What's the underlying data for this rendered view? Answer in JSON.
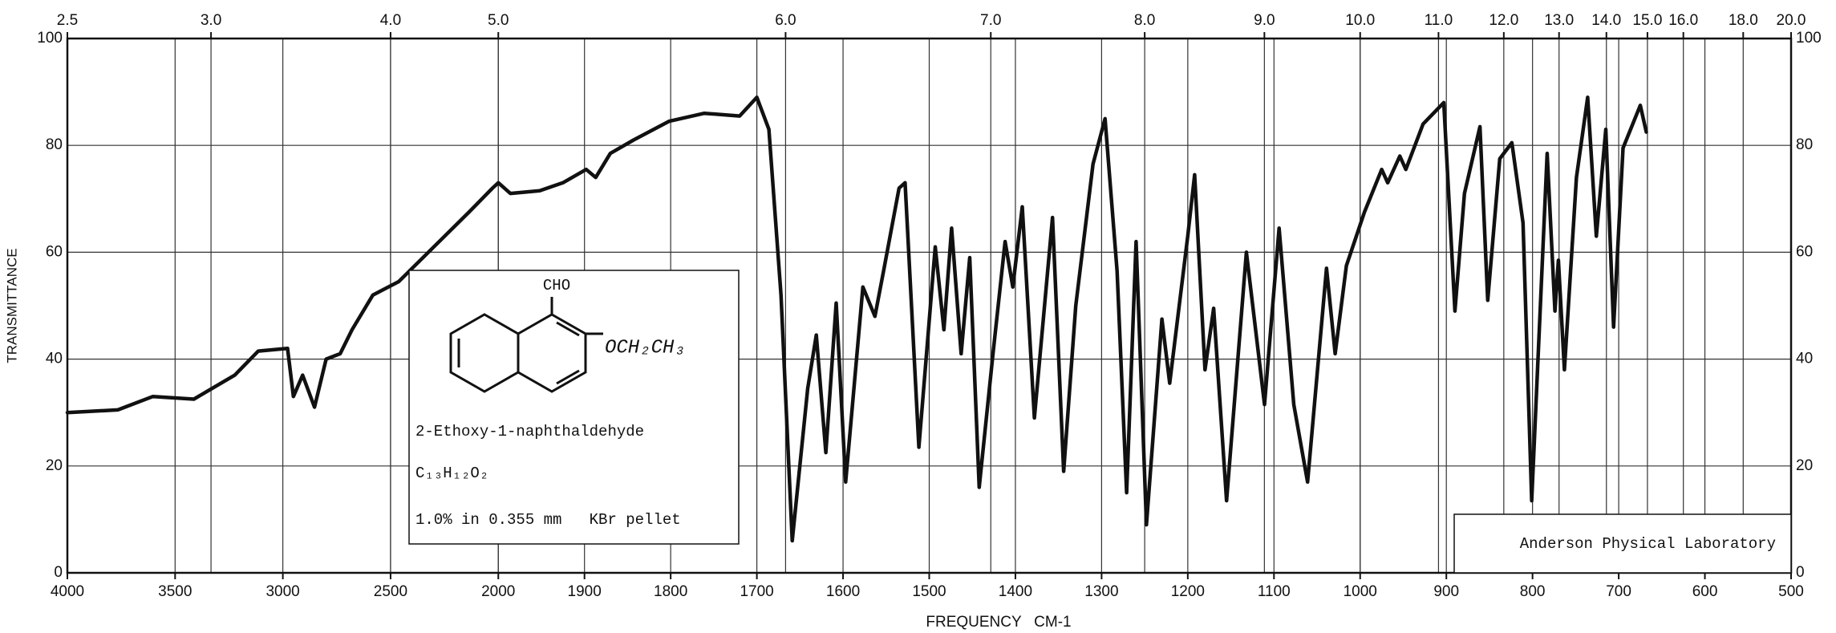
{
  "chart_data": {
    "type": "line",
    "xlabel": "FREQUENCY   CM-1",
    "ylabel": "TRANSMITTANCE",
    "x": [
      4000,
      3766,
      3603,
      3413,
      3223,
      3114,
      2978,
      2951,
      2908,
      2853,
      2799,
      2734,
      2679,
      2582,
      2462,
      2299,
      2136,
      2027,
      2000,
      1986,
      1952,
      1925,
      1898,
      1887,
      1870,
      1843,
      1802,
      1761,
      1720,
      1700,
      1686,
      1672,
      1659,
      1641,
      1631,
      1620,
      1608,
      1597,
      1577,
      1563,
      1553,
      1535,
      1528,
      1512,
      1493,
      1483,
      1474,
      1463,
      1453,
      1442,
      1426,
      1412,
      1403,
      1392,
      1378,
      1357,
      1344,
      1330,
      1310,
      1296,
      1282,
      1271,
      1260,
      1248,
      1230,
      1221,
      1200,
      1192,
      1180,
      1170,
      1155,
      1132,
      1111,
      1094,
      1077,
      1061,
      1039,
      1029,
      1016,
      995,
      975,
      968,
      954,
      947,
      927,
      903,
      890,
      879,
      861,
      852,
      838,
      824,
      811,
      801,
      783,
      774,
      770,
      763,
      749,
      736,
      726,
      715,
      706,
      695,
      675,
      668
    ],
    "values": [
      30,
      30.5,
      33,
      32.5,
      37,
      41.5,
      42,
      33,
      37,
      31,
      40,
      41,
      45.5,
      52,
      54.5,
      61,
      67.5,
      72,
      73,
      71,
      71.5,
      73,
      75.5,
      74,
      78.5,
      81,
      84.5,
      86,
      85.5,
      89,
      83,
      52,
      6,
      34.5,
      44.5,
      22.5,
      50.5,
      17,
      53.5,
      48,
      56.5,
      72,
      73,
      23.5,
      61,
      45.5,
      64.5,
      41,
      59,
      16,
      41,
      62,
      53.5,
      68.5,
      29,
      66.5,
      19,
      50,
      76.5,
      85,
      56.5,
      15,
      62,
      9,
      47.5,
      35.5,
      63,
      74.5,
      38,
      49.5,
      13.5,
      60,
      31.5,
      64.5,
      31.5,
      17,
      57,
      41,
      57.5,
      67.5,
      75.5,
      73,
      78,
      75.5,
      84,
      88,
      49,
      71,
      83.5,
      51,
      77.5,
      80.5,
      65.5,
      13.5,
      78.5,
      49,
      58.5,
      38,
      74,
      89,
      63,
      83,
      46,
      79.5,
      87.5,
      82.5
    ],
    "color": "#111111",
    "xlim": [
      4000,
      500
    ],
    "x_scale": {
      "break": 2000,
      "ratio_after_break": 4
    },
    "xticks": [
      4000,
      3500,
      3000,
      2500,
      2000,
      1900,
      1800,
      1700,
      1600,
      1500,
      1400,
      1300,
      1200,
      1100,
      1000,
      900,
      800,
      700,
      600,
      500
    ],
    "x2lim": [
      2.5,
      20
    ],
    "x2ticks": [
      2.5,
      {
        "value": 3,
        "label": "3.0"
      },
      {
        "value": 4,
        "label": "4.0"
      },
      {
        "value": 5,
        "label": "5.0"
      },
      {
        "value": 6,
        "label": "6.0"
      },
      {
        "value": 7,
        "label": "7.0"
      },
      {
        "value": 8,
        "label": "8.0"
      },
      {
        "value": 9,
        "label": "9.0"
      },
      {
        "value": 10,
        "label": "10.0"
      },
      {
        "value": 11,
        "label": "11.0"
      },
      {
        "value": 12,
        "label": "12.0"
      },
      {
        "value": 13,
        "label": "13.0"
      },
      {
        "value": 14,
        "label": "14.0"
      },
      {
        "value": 15,
        "label": "15.0"
      },
      {
        "value": 16,
        "label": "16.0"
      },
      {
        "value": 18,
        "label": "18.0"
      },
      {
        "value": 20,
        "label": "20.0"
      }
    ],
    "ylim": [
      0,
      100
    ],
    "yticks": [
      0,
      20,
      40,
      60,
      80,
      100
    ],
    "grid": true,
    "annotations": {
      "substituent_top": "CHO",
      "substituent_right": "OCH₂CH₃",
      "compound": "2-Ethoxy-1-naphthaldehyde",
      "formula": "C₁₃H₁₂O₂",
      "sample": "1.0% in 0.355 mm   KBr pellet",
      "lab": "Anderson Physical Laboratory"
    }
  }
}
